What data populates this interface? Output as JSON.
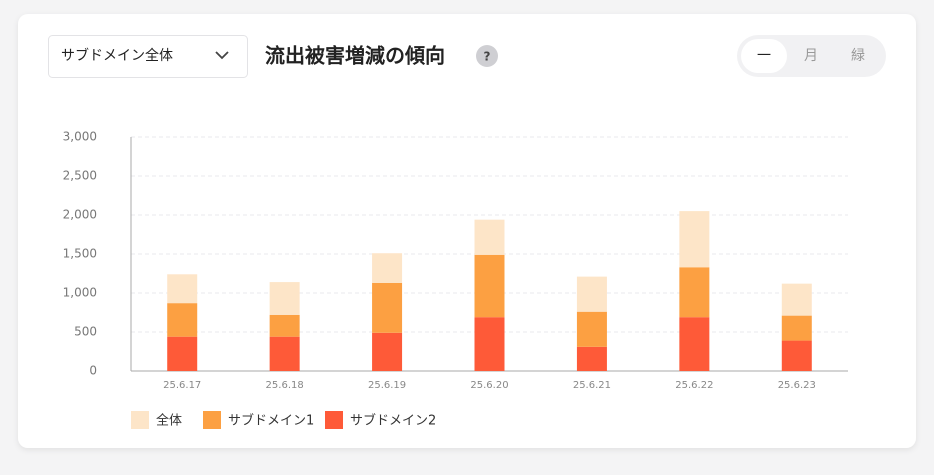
{
  "dropdown": "サブドメイン全体",
  "help": "?",
  "toggle": [
    "一",
    "月",
    "緑"
  ],
  "chart_data": {
    "type": "stacked_bar",
    "title": "流出被害増減の傾向",
    "categories": [
      "25.6.17",
      "25.6.18",
      "25.6.19",
      "25.6.20",
      "25.6.21",
      "25.6.22",
      "25.6.23"
    ],
    "series": [
      {
        "name": "サブドメイン2",
        "color": "#fe5a38",
        "values": [
          440,
          440,
          490,
          690,
          310,
          690,
          390
        ]
      },
      {
        "name": "サブドメイン1",
        "color": "#fca042",
        "values": [
          430,
          280,
          640,
          800,
          450,
          640,
          320
        ]
      },
      {
        "name": "全体",
        "color": "#fde5c8",
        "values": [
          370,
          420,
          380,
          450,
          450,
          720,
          410
        ]
      }
    ],
    "legend_order": [
      "全体",
      "サブドメイン1",
      "サブドメイン2"
    ],
    "ylim": [
      0,
      3000
    ],
    "yticks": [
      0,
      500,
      {
        "value": 1000,
        "label": "1,000"
      },
      {
        "value": 1500,
        "label": "1,500"
      },
      {
        "value": 2000,
        "label": "2,000"
      },
      {
        "value": 2500,
        "label": "2,500"
      },
      {
        "value": 3000,
        "label": "3,000"
      }
    ],
    "grid": true
  }
}
